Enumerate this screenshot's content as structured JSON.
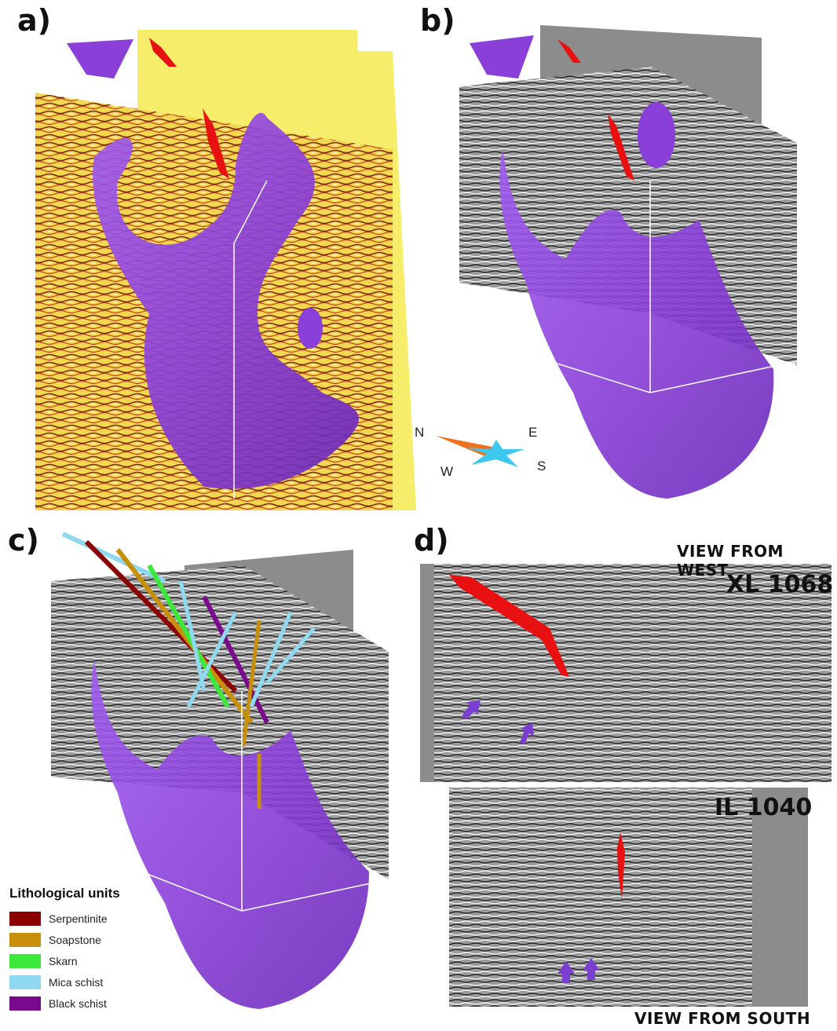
{
  "panels": {
    "a": {
      "label": "a)"
    },
    "b": {
      "label": "b)"
    },
    "c": {
      "label": "c)"
    },
    "d": {
      "label": "d)",
      "top_view_title": "VIEW FROM WEST",
      "bottom_view_title": "VIEW FROM SOUTH",
      "top_slice_label": "XL 1068",
      "bottom_slice_label": "IL 1040"
    }
  },
  "compass": {
    "north": "N",
    "east": "E",
    "south": "S",
    "west": "W"
  },
  "legend": {
    "title": "Lithological units",
    "items": [
      {
        "label": "Serpentinite",
        "color": "#8B0000"
      },
      {
        "label": "Soapstone",
        "color": "#C8900A"
      },
      {
        "label": "Skarn",
        "color": "#3CE83C"
      },
      {
        "label": "Mica schist",
        "color": "#8ED8F0"
      },
      {
        "label": "Black schist",
        "color": "#7A0A8C"
      }
    ]
  },
  "colors": {
    "body": "#8A3FD8",
    "body_dark": "#5A1FA0",
    "fault": "#E81010",
    "seismic_yellow": "#F6EE6A",
    "seismic_gray": "#8C8C8C",
    "arrow": "#7A3FD0"
  }
}
